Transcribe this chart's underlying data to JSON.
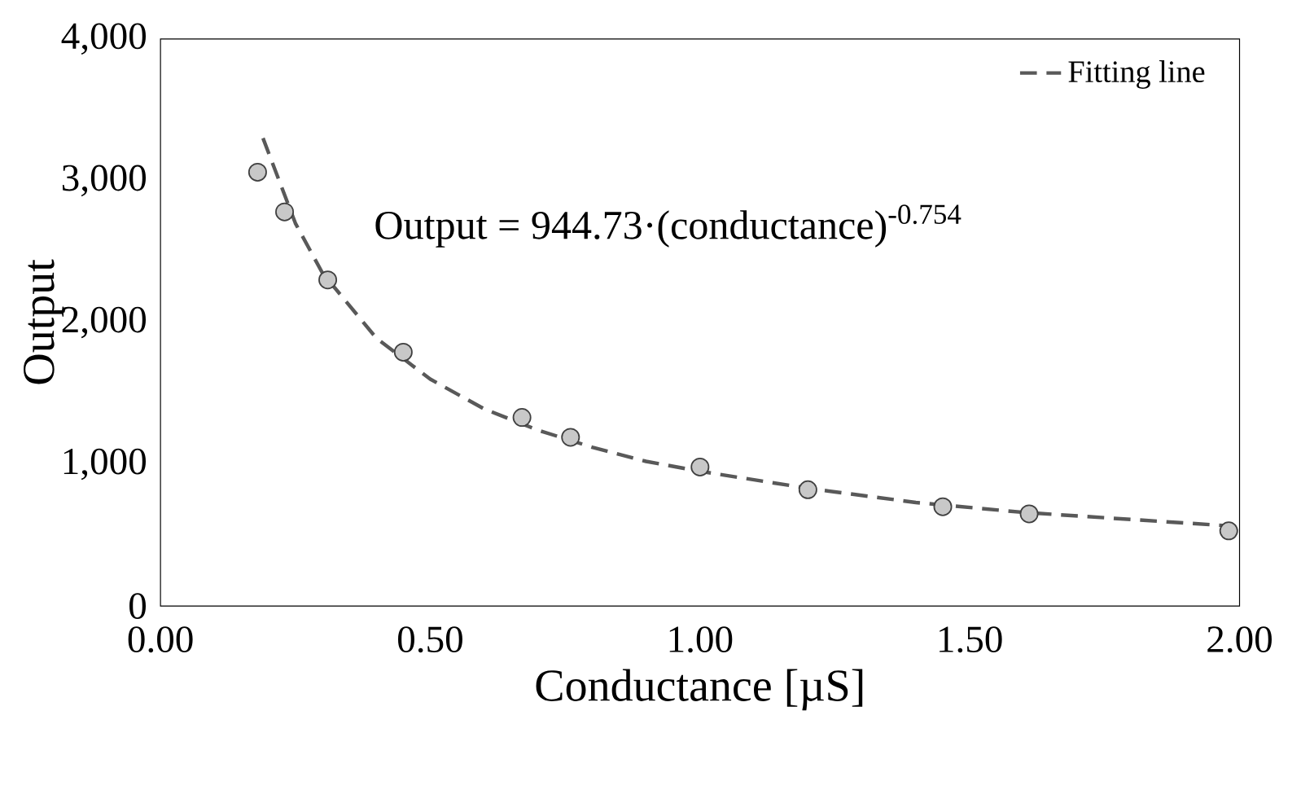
{
  "chart_data": {
    "type": "scatter",
    "xlabel": "Conductance [µS]",
    "ylabel": "Output",
    "annotations": [
      "Output  = 944.73·(conductance)$^{-0.754}$"
    ],
    "series": [
      {
        "type": "scatter",
        "marker": "circle",
        "color": "#c8c8c8",
        "x": [
          0.18,
          0.23,
          0.31,
          0.45,
          0.67,
          0.76,
          1.0,
          1.2,
          1.45,
          1.61,
          1.98
        ],
        "values": [
          3060,
          2780,
          2300,
          1790,
          1330,
          1190,
          980,
          820,
          700,
          650,
          530
        ]
      },
      {
        "type": "line",
        "name": "Fitting line",
        "color": "#595959",
        "line_style": "dashed",
        "x": [
          0.19,
          0.25,
          0.3,
          0.4,
          0.5,
          0.6,
          0.7,
          0.8,
          0.9,
          1.0,
          1.2,
          1.4,
          1.6,
          1.8,
          2.0
        ],
        "values": [
          3300,
          2700,
          2350,
          1890,
          1600,
          1390,
          1240,
          1120,
          1020,
          950,
          830,
          730,
          660,
          610,
          560
        ]
      }
    ],
    "xlim": [
      0,
      2
    ],
    "ylim": [
      0,
      4000
    ],
    "xticks": [
      {
        "value": 0,
        "label": "0.00"
      },
      {
        "value": 0.5,
        "label": "0.50"
      },
      {
        "value": 1,
        "label": "1.00"
      },
      {
        "value": 1.5,
        "label": "1.50"
      },
      {
        "value": 2,
        "label": "2.00"
      }
    ],
    "yticks": [
      0,
      {
        "value": 1000,
        "label": "1,000"
      },
      {
        "value": 2000,
        "label": "2,000"
      },
      {
        "value": 3000,
        "label": "3,000"
      },
      {
        "value": 4000,
        "label": "4,000"
      }
    ],
    "legend": "top right",
    "grid": false
  }
}
